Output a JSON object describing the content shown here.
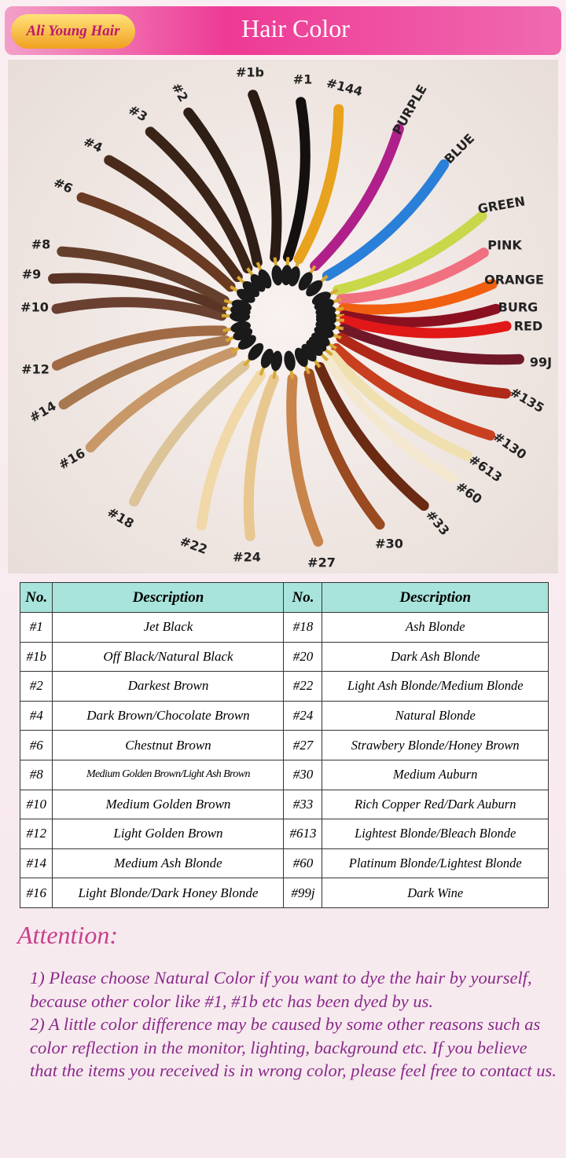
{
  "header": {
    "brand": "Ali Young Hair",
    "title": "Hair Color"
  },
  "swatches": [
    {
      "label": "#1b",
      "color": "#2a1a14"
    },
    {
      "label": "#1",
      "color": "#141010"
    },
    {
      "label": "#144",
      "color": "#e8a21e"
    },
    {
      "label": "PURPLE",
      "color": "#b0208a"
    },
    {
      "label": "BLUE",
      "color": "#2a7fd8"
    },
    {
      "label": "GREEN",
      "color": "#c8d84a"
    },
    {
      "label": "PINK",
      "color": "#f07080"
    },
    {
      "label": "ORANGE",
      "color": "#f06010"
    },
    {
      "label": "BURG",
      "color": "#8a1020"
    },
    {
      "label": "RED",
      "color": "#e01818"
    },
    {
      "label": "99J",
      "color": "#701828"
    },
    {
      "label": "#135",
      "color": "#b02818"
    },
    {
      "label": "#130",
      "color": "#c84020"
    },
    {
      "label": "#613",
      "color": "#f0e0b0"
    },
    {
      "label": "#60",
      "color": "#f4e8d0"
    },
    {
      "label": "#33",
      "color": "#6a2a14"
    },
    {
      "label": "#30",
      "color": "#9a4a20"
    },
    {
      "label": "#27",
      "color": "#c8844a"
    },
    {
      "label": "#24",
      "color": "#e8c890"
    },
    {
      "label": "#22",
      "color": "#f0d8a8"
    },
    {
      "label": "#18",
      "color": "#dcc498"
    },
    {
      "label": "#16",
      "color": "#c89868"
    },
    {
      "label": "#14",
      "color": "#a87850"
    },
    {
      "label": "#12",
      "color": "#a06a44"
    },
    {
      "label": "#10",
      "color": "#6a4030"
    },
    {
      "label": "#9",
      "color": "#5a3424"
    },
    {
      "label": "#8",
      "color": "#64402c"
    },
    {
      "label": "#6",
      "color": "#6a3a22"
    },
    {
      "label": "#4",
      "color": "#4a2a1a"
    },
    {
      "label": "#3",
      "color": "#3a2418"
    },
    {
      "label": "#2",
      "color": "#2e1e16"
    }
  ],
  "table": {
    "columns": [
      "No.",
      "Description",
      "No.",
      "Description"
    ],
    "rows": [
      [
        "#1",
        "Jet Black",
        "#18",
        "Ash Blonde"
      ],
      [
        "#1b",
        "Off Black/Natural Black",
        "#20",
        "Dark Ash Blonde"
      ],
      [
        "#2",
        "Darkest Brown",
        "#22",
        "Light Ash Blonde/Medium Blonde"
      ],
      [
        "#4",
        "Dark Brown/Chocolate Brown",
        "#24",
        "Natural Blonde"
      ],
      [
        "#6",
        "Chestnut Brown",
        "#27",
        "Strawbery Blonde/Honey Brown"
      ],
      [
        "#8",
        "Medium Golden Brown/Light Ash Brown",
        "#30",
        "Medium Auburn"
      ],
      [
        "#10",
        "Medium Golden Brown",
        "#33",
        "Rich Copper Red/Dark Auburn"
      ],
      [
        "#12",
        "Light Golden Brown",
        "#613",
        "Lightest Blonde/Bleach Blonde"
      ],
      [
        "#14",
        "Medium Ash Blonde",
        "#60",
        "Platinum Blonde/Lightest Blonde"
      ],
      [
        "#16",
        "Light Blonde/Dark Honey Blonde",
        "#99j",
        "Dark Wine"
      ]
    ]
  },
  "attention": {
    "title": "Attention:",
    "items": [
      "1) Please choose Natural Color if you want to dye the hair by yourself, because other color like #1, #1b etc has been dyed by us.",
      "2) A little color difference may be caused by some other reasons such as color reflection in the monitor, lighting, background etc. If you believe that the items you received is in wrong color, please feel free to contact us."
    ]
  }
}
